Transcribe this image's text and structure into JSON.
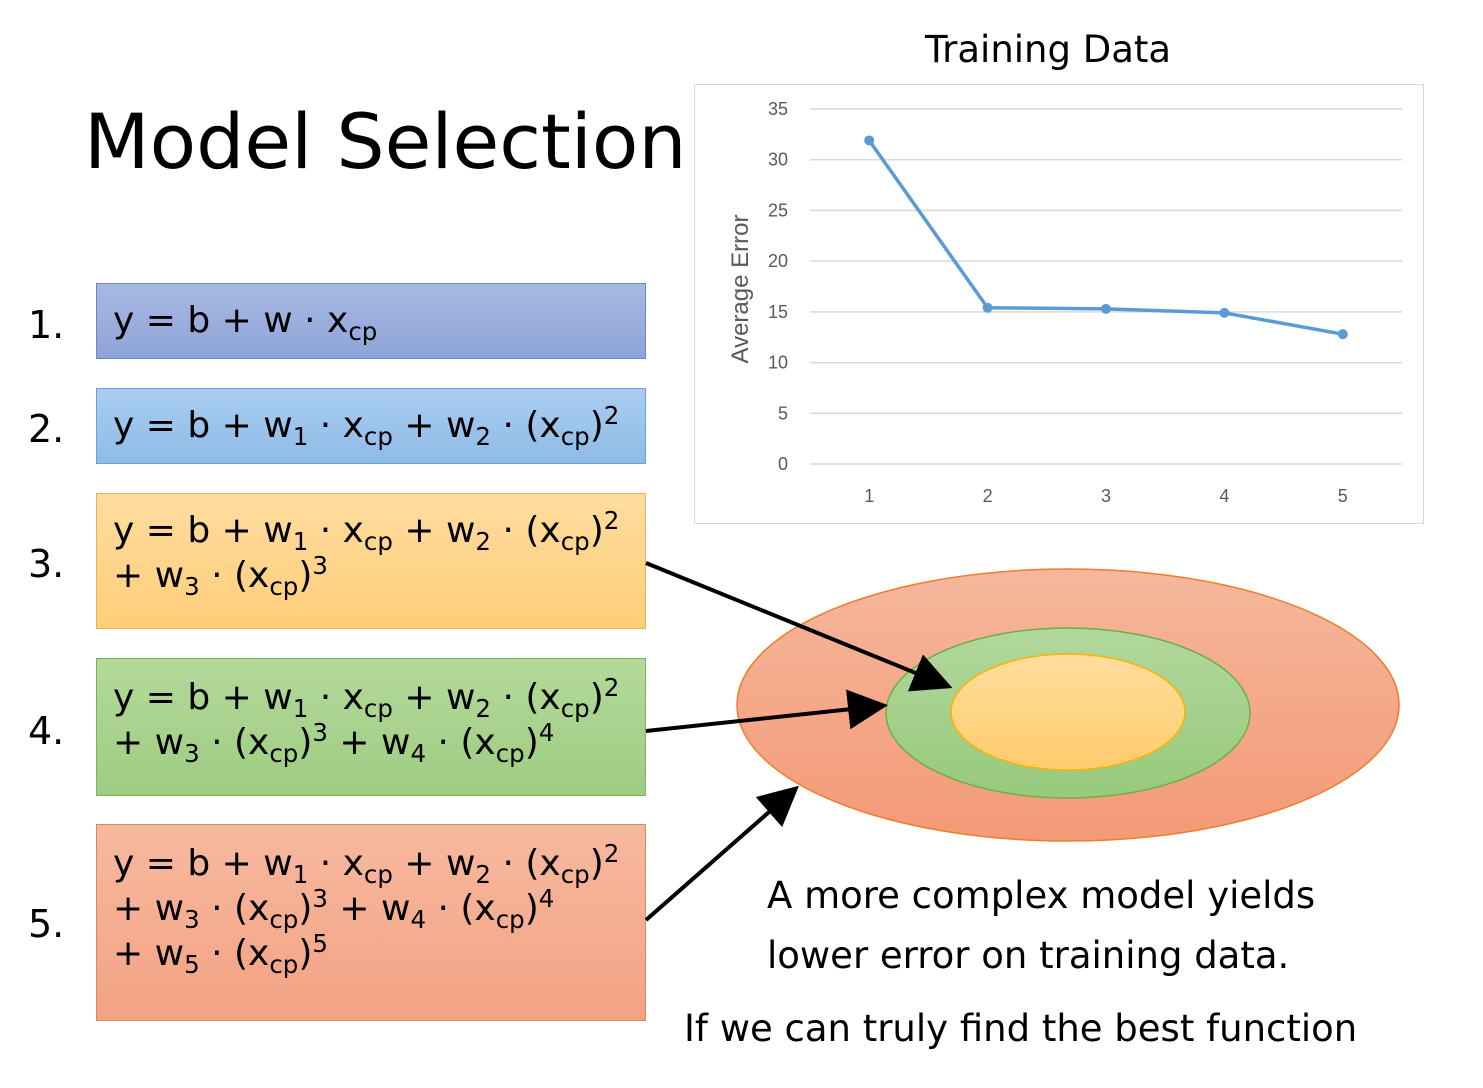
{
  "title": "Model Selection",
  "models": [
    {
      "number": "1.",
      "lines": [
        [
          {
            "t": "y = b + w · x"
          },
          {
            "sub": "cp"
          }
        ]
      ]
    },
    {
      "number": "2.",
      "lines": [
        [
          {
            "t": "y = b + w"
          },
          {
            "sub": "1"
          },
          {
            "t": " · x"
          },
          {
            "sub": "cp"
          },
          {
            "t": " + w"
          },
          {
            "sub": "2"
          },
          {
            "t": " · (x"
          },
          {
            "sub": "cp"
          },
          {
            "t": ")"
          },
          {
            "sup": "2"
          }
        ]
      ]
    },
    {
      "number": "3.",
      "lines": [
        [
          {
            "t": "y = b + w"
          },
          {
            "sub": "1"
          },
          {
            "t": " · x"
          },
          {
            "sub": "cp"
          },
          {
            "t": " + w"
          },
          {
            "sub": "2"
          },
          {
            "t": " · (x"
          },
          {
            "sub": "cp"
          },
          {
            "t": ")"
          },
          {
            "sup": "2"
          }
        ],
        [
          {
            "t": "+ w"
          },
          {
            "sub": "3"
          },
          {
            "t": " · (x"
          },
          {
            "sub": "cp"
          },
          {
            "t": ")"
          },
          {
            "sup": "3"
          }
        ]
      ]
    },
    {
      "number": "4.",
      "lines": [
        [
          {
            "t": "y = b + w"
          },
          {
            "sub": "1"
          },
          {
            "t": " · x"
          },
          {
            "sub": "cp"
          },
          {
            "t": " + w"
          },
          {
            "sub": "2"
          },
          {
            "t": " · (x"
          },
          {
            "sub": "cp"
          },
          {
            "t": ")"
          },
          {
            "sup": "2"
          }
        ],
        [
          {
            "t": "+ w"
          },
          {
            "sub": "3"
          },
          {
            "t": " · (x"
          },
          {
            "sub": "cp"
          },
          {
            "t": ")"
          },
          {
            "sup": "3"
          },
          {
            "t": " + w"
          },
          {
            "sub": "4"
          },
          {
            "t": " · (x"
          },
          {
            "sub": "cp"
          },
          {
            "t": ")"
          },
          {
            "sup": "4"
          }
        ]
      ]
    },
    {
      "number": "5.",
      "lines": [
        [
          {
            "t": "y = b + w"
          },
          {
            "sub": "1"
          },
          {
            "t": " · x"
          },
          {
            "sub": "cp"
          },
          {
            "t": " + w"
          },
          {
            "sub": "2"
          },
          {
            "t": " · (x"
          },
          {
            "sub": "cp"
          },
          {
            "t": ")"
          },
          {
            "sup": "2"
          }
        ],
        [
          {
            "t": "+ w"
          },
          {
            "sub": "3"
          },
          {
            "t": " · (x"
          },
          {
            "sub": "cp"
          },
          {
            "t": ")"
          },
          {
            "sup": "3"
          },
          {
            "t": " + w"
          },
          {
            "sub": "4"
          },
          {
            "t": " · (x"
          },
          {
            "sub": "cp"
          },
          {
            "t": ")"
          },
          {
            "sup": "4"
          }
        ],
        [
          {
            "t": "+ w"
          },
          {
            "sub": "5"
          },
          {
            "t": " · (x"
          },
          {
            "sub": "cp"
          },
          {
            "t": ")"
          },
          {
            "sup": "5"
          }
        ]
      ]
    }
  ],
  "chart_data": {
    "type": "line",
    "title": "Training Data",
    "xlabel": "",
    "ylabel": "Average Error",
    "categories": [
      "1",
      "2",
      "3",
      "4",
      "5"
    ],
    "series": [
      {
        "values": [
          31.9,
          15.4,
          15.3,
          14.9,
          12.8
        ]
      }
    ],
    "ylim": [
      0,
      35
    ],
    "yticks": [
      0,
      5,
      10,
      15,
      20,
      25,
      30,
      35
    ],
    "grid": true,
    "line_color": "#5b9bd5"
  },
  "captions": {
    "line1": "A more complex model yields",
    "line2": "lower error on training data.",
    "line3": "If we can truly find the best function"
  },
  "colors": {
    "outer_ellipse": "#f4a07e",
    "middle_ellipse": "#a3d08b",
    "inner_ellipse": "#ffd57f"
  }
}
